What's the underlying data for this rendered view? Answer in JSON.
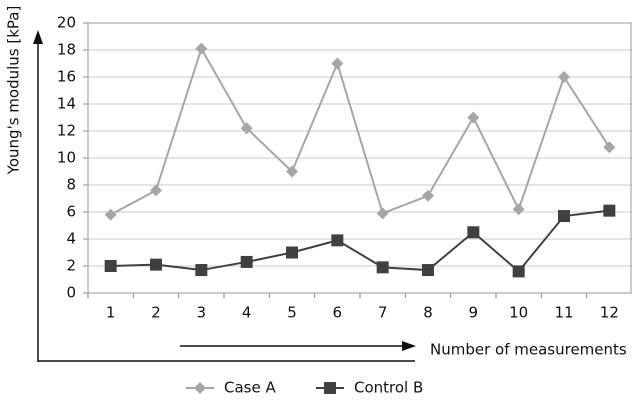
{
  "chart_data": {
    "type": "line",
    "y_label": "Young's modulus [kPa]",
    "x_label": "Number of measurements",
    "categories": [
      "1",
      "2",
      "3",
      "4",
      "5",
      "6",
      "7",
      "8",
      "9",
      "10",
      "11",
      "12"
    ],
    "series": [
      {
        "name": "Case A",
        "color": "#a6a6a6",
        "marker": "diamond",
        "values": [
          5.8,
          7.6,
          18.1,
          12.2,
          9.0,
          17.0,
          5.9,
          7.2,
          13.0,
          6.2,
          16.0,
          10.8
        ]
      },
      {
        "name": "Control B",
        "color": "#404040",
        "marker": "square",
        "values": [
          2.0,
          2.1,
          1.7,
          2.3,
          3.0,
          3.9,
          1.9,
          1.7,
          4.5,
          1.6,
          5.7,
          6.1
        ]
      }
    ],
    "ylim": [
      0,
      20
    ],
    "yticks": [
      0,
      2,
      4,
      6,
      8,
      10,
      12,
      14,
      16,
      18,
      20
    ],
    "grid": true
  }
}
